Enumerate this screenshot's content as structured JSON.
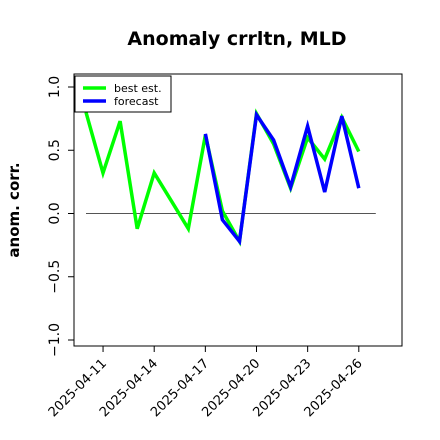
{
  "chart_data": {
    "type": "line",
    "title": "Anomaly crrltn, MLD",
    "xlabel": "",
    "ylabel": "anom. corr.",
    "ylim": [
      -1.0,
      1.0
    ],
    "yticks": [
      "−1.0",
      "−0.5",
      "0.0",
      "0.5",
      "1.0"
    ],
    "ytick_values": [
      -1.0,
      -0.5,
      0.0,
      0.5,
      1.0
    ],
    "x": [
      "2025-04-10",
      "2025-04-11",
      "2025-04-12",
      "2025-04-13",
      "2025-04-14",
      "2025-04-15",
      "2025-04-16",
      "2025-04-17",
      "2025-04-18",
      "2025-04-19",
      "2025-04-20",
      "2025-04-21",
      "2025-04-22",
      "2025-04-23",
      "2025-04-24",
      "2025-04-25",
      "2025-04-26"
    ],
    "xticks": [
      "2025-04-11",
      "2025-04-14",
      "2025-04-17",
      "2025-04-20",
      "2025-04-23",
      "2025-04-26"
    ],
    "xtick_colors": [
      "#000000",
      "#000000",
      "#1e7a1e",
      "#000000",
      "#000000",
      "#000000"
    ],
    "reference_line": 0.0,
    "series": [
      {
        "name": "best est.",
        "color": "#00ff00",
        "values": [
          0.8,
          0.32,
          0.73,
          -0.12,
          0.32,
          0.1,
          -0.12,
          0.62,
          0.02,
          -0.22,
          0.79,
          0.55,
          0.2,
          0.6,
          0.43,
          0.76,
          0.49
        ]
      },
      {
        "name": "forecast",
        "color": "#0000ff",
        "values": [
          null,
          null,
          null,
          null,
          null,
          null,
          null,
          0.63,
          -0.05,
          -0.22,
          0.78,
          0.58,
          0.21,
          0.69,
          0.17,
          0.77,
          0.2
        ]
      }
    ],
    "legend_position": "top-left",
    "grid": false
  }
}
